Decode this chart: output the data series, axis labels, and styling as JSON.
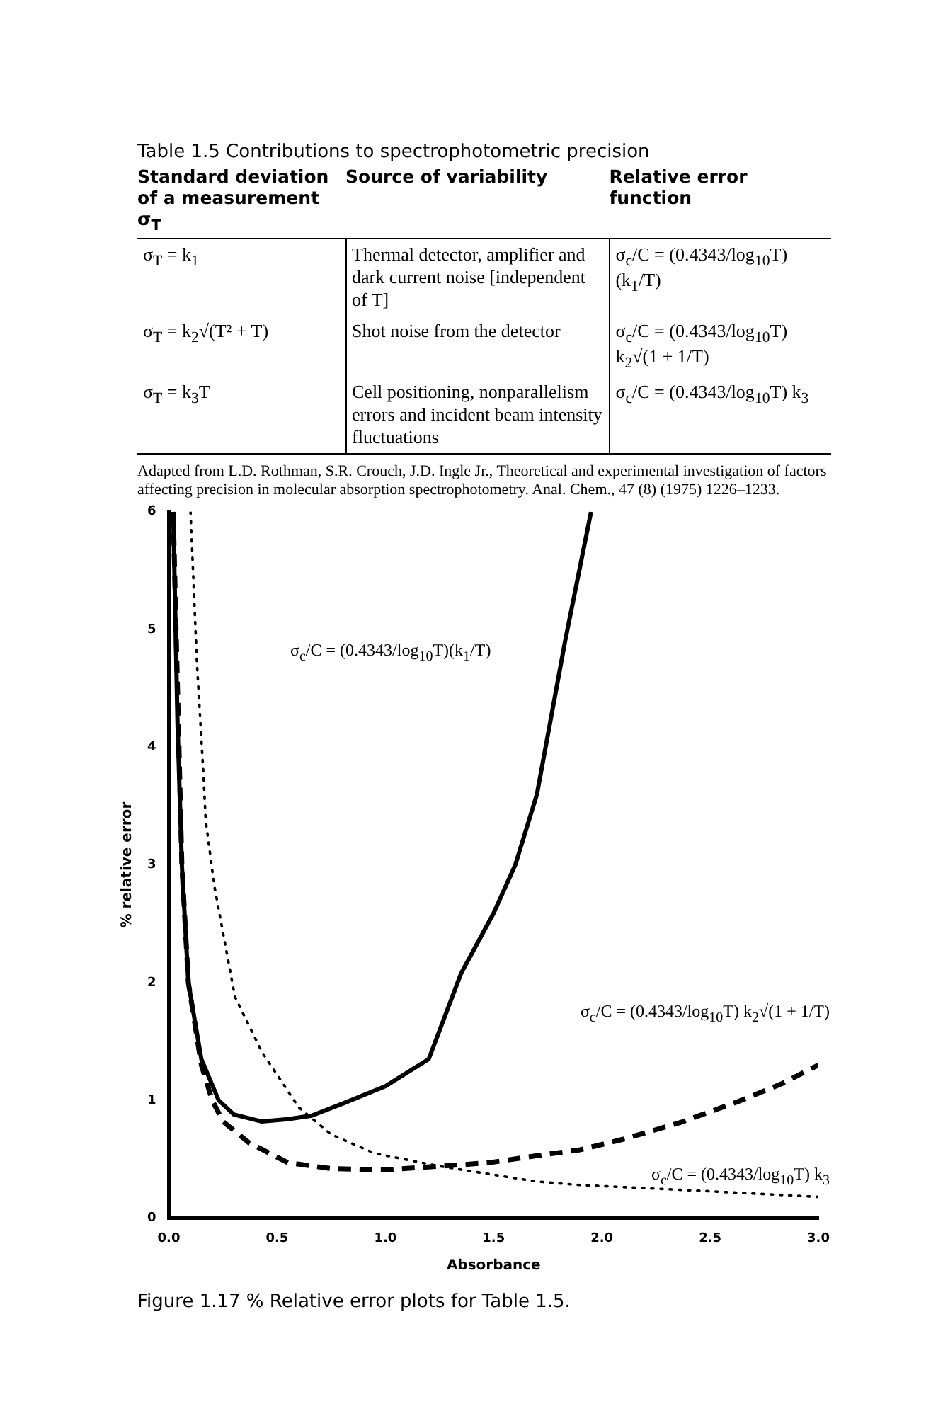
{
  "chart_data": [
    {
      "type": "other",
      "title": "Table 1.5 Contributions to spectrophotometric precision",
      "annotations": [
        "Standard deviation of a measurement σ$_{T}$",
        "Source of variability",
        "Relative error function",
        "σ$_{T}$ = k$_{1}$",
        "Thermal detector, amplifier and dark current noise [independent of T]",
        "σ$_{c}$/C = (0.4343/log$_{10}$T)(k$_{1}$/T)",
        "σ$_{T}$ = k$_{2}$√(T² + T)",
        "Shot noise from the detector",
        "σ$_{c}$/C = (0.4343/log$_{10}$T) k$_{2}$√(1 + 1/T)",
        "σ$_{T}$ = k$_{3}$T",
        "Cell positioning, nonparallelism errors and incident beam intensity fluctuations",
        "σ$_{c}$/C = (0.4343/log$_{10}$T) k$_{3}$",
        "Adapted from L.D. Rothman, S.R. Crouch, J.D. Ingle Jr., Theoretical and experimental investigation of factors affecting precision in molecular absorption spectrophotometry. Anal. Chem., 47 (8) (1975) 1226–1233."
      ]
    },
    {
      "type": "line",
      "xlabel": "Absorbance",
      "ylabel": "% relative error",
      "marker": "none",
      "xlim": [
        0,
        3
      ],
      "ylim": [
        0,
        6
      ],
      "xticks": [
        {
          "value": 0,
          "label": "0.0"
        },
        {
          "value": 0.5,
          "label": "0.5"
        },
        {
          "value": 1,
          "label": "1.0"
        },
        {
          "value": 1.5,
          "label": "1.5"
        },
        {
          "value": 2,
          "label": "2.0"
        },
        {
          "value": 2.5,
          "label": "2.5"
        },
        {
          "value": 3,
          "label": "3.0"
        }
      ],
      "yticks": [
        0,
        1,
        2,
        3,
        4,
        5,
        6
      ],
      "series": [
        {
          "color": "#000000",
          "line_style": "solid",
          "x": [
            0.02,
            0.04,
            0.06,
            0.09,
            0.15,
            0.23,
            0.3,
            0.43,
            0.55,
            0.66,
            0.8,
            1.0,
            1.2,
            1.35,
            1.5,
            1.6,
            1.7,
            1.83,
            1.95
          ],
          "values": [
            6.0,
            4.2,
            3.0,
            2.0,
            1.35,
            1.0,
            0.88,
            0.82,
            0.84,
            0.87,
            0.97,
            1.12,
            1.35,
            2.08,
            2.59,
            3.0,
            3.6,
            4.9,
            6.0
          ]
        },
        {
          "color": "#000000",
          "line_style": "dashed",
          "x": [
            0.02,
            0.06,
            0.09,
            0.15,
            0.2,
            0.25,
            0.37,
            0.55,
            0.75,
            1.0,
            1.25,
            1.48,
            1.7,
            1.9,
            2.1,
            2.36,
            2.63,
            2.83,
            3.0
          ],
          "values": [
            6.0,
            3.0,
            2.0,
            1.3,
            1.0,
            0.82,
            0.64,
            0.47,
            0.42,
            0.41,
            0.44,
            0.47,
            0.53,
            0.58,
            0.67,
            0.81,
            0.99,
            1.14,
            1.3
          ]
        },
        {
          "color": "#000000",
          "line_style": "dotted",
          "x": [
            0.1,
            0.13,
            0.16,
            0.17,
            0.21,
            0.305,
            0.43,
            0.6,
            0.75,
            0.95,
            1.25,
            1.7,
            1.9,
            2.36,
            3.0
          ],
          "values": [
            6.0,
            4.7,
            3.76,
            3.38,
            2.82,
            1.88,
            1.41,
            0.94,
            0.71,
            0.55,
            0.44,
            0.31,
            0.28,
            0.24,
            0.18
          ]
        }
      ],
      "annotations": [
        "σ$_{c}$/C = (0.4343/log$_{10}$T)(k$_{1}$/T)",
        "σ$_{c}$/C = (0.4343/log$_{10}$T) k$_{2}$√(1 + 1/T)",
        "σ$_{c}$/C = (0.4343/log$_{10}$T) k$_{3}$",
        "Figure 1.17 % Relative error plots for Table 1.5."
      ]
    }
  ]
}
